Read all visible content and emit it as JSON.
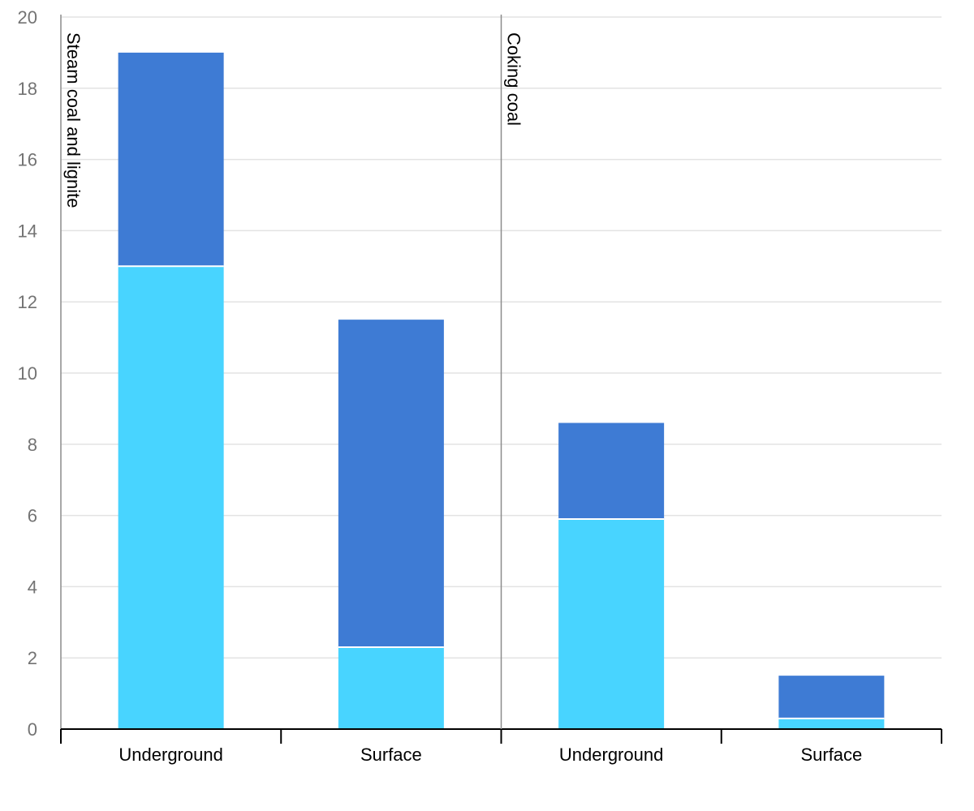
{
  "chart_data": {
    "type": "bar",
    "stacked": true,
    "title": "",
    "xlabel": "",
    "ylabel": "",
    "ylim": [
      0,
      20
    ],
    "yticks": [
      0,
      2,
      4,
      6,
      8,
      10,
      12,
      14,
      16,
      18,
      20
    ],
    "grid": true,
    "legend": "none",
    "groups": [
      {
        "label": "Steam coal and lignite",
        "categories": [
          "Underground",
          "Surface"
        ]
      },
      {
        "label": "Coking coal",
        "categories": [
          "Underground",
          "Surface"
        ]
      }
    ],
    "categories": [
      "Underground",
      "Surface",
      "Underground",
      "Surface"
    ],
    "series": [
      {
        "values": [
          13.0,
          2.3,
          5.9,
          0.3
        ],
        "color": "#48d4ff"
      },
      {
        "values": [
          6.0,
          9.2,
          2.7,
          1.2
        ],
        "color": "#3e7bd4"
      }
    ]
  }
}
